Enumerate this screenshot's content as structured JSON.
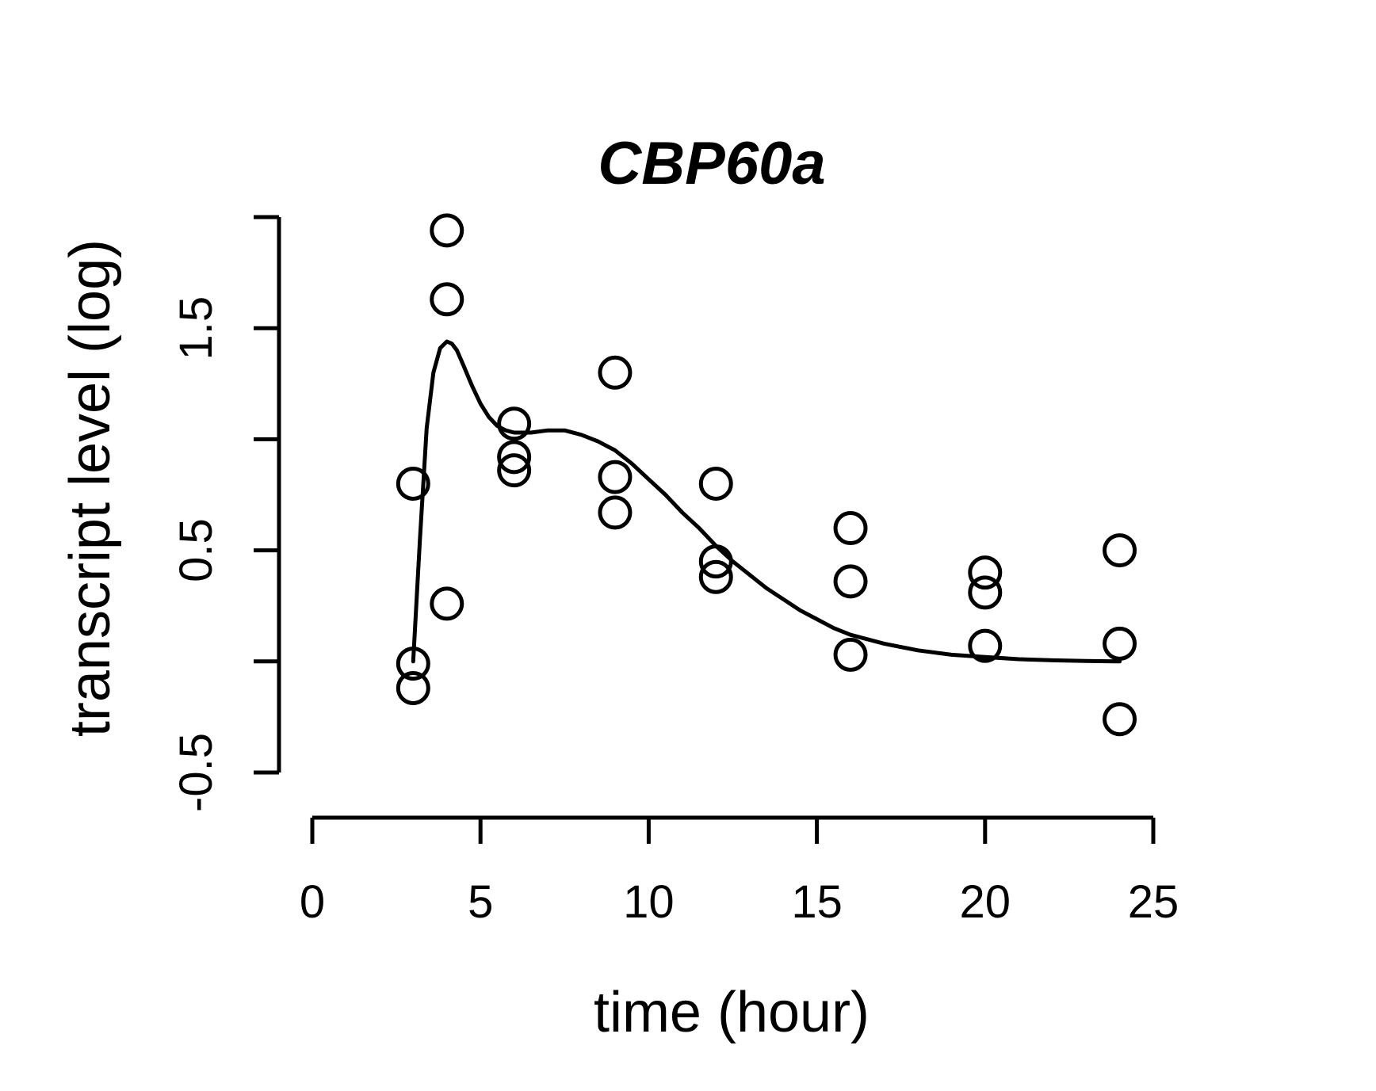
{
  "chart_data": {
    "type": "scatter",
    "title": "CBP60a",
    "xlabel": "time (hour)",
    "ylabel": "transcript level (log)",
    "xlim": [
      0,
      25
    ],
    "ylim": [
      -0.5,
      2.0
    ],
    "x_ticks": [
      0,
      5,
      10,
      15,
      20,
      25
    ],
    "x_tick_labels": [
      "0",
      "5",
      "10",
      "15",
      "20",
      "25"
    ],
    "y_ticks": [
      -0.5,
      0,
      0.5,
      1.0,
      1.5,
      2.0
    ],
    "y_tick_labels": [
      "-0.5",
      "",
      "0.5",
      "",
      "1.5",
      ""
    ],
    "grid": false,
    "legend": "none",
    "series": [
      {
        "kind": "points",
        "x": [
          3,
          3,
          3,
          4,
          4,
          4,
          6,
          6,
          6,
          9,
          9,
          9,
          12,
          12,
          12,
          16,
          16,
          16,
          20,
          20,
          20,
          24,
          24,
          24
        ],
        "y": [
          0.8,
          -0.01,
          -0.12,
          1.94,
          1.63,
          0.26,
          1.07,
          0.92,
          0.86,
          1.3,
          0.83,
          0.67,
          0.8,
          0.45,
          0.38,
          0.6,
          0.36,
          0.03,
          0.4,
          0.31,
          0.07,
          0.5,
          0.08,
          -0.26
        ]
      },
      {
        "kind": "fitted-curve",
        "x": [
          3.0,
          3.2,
          3.4,
          3.6,
          3.8,
          4.0,
          4.15,
          4.3,
          4.5,
          4.75,
          5.0,
          5.25,
          5.5,
          5.75,
          6.0,
          6.5,
          7.0,
          7.5,
          8.0,
          8.5,
          9.0,
          9.5,
          10.0,
          10.5,
          11.0,
          11.5,
          12.0,
          12.5,
          13.0,
          13.5,
          14.0,
          14.5,
          15.0,
          15.5,
          16.0,
          17.0,
          18.0,
          19.0,
          20.0,
          21.0,
          22.0,
          23.0,
          24.0
        ],
        "y": [
          0.0,
          0.55,
          1.05,
          1.3,
          1.41,
          1.44,
          1.43,
          1.4,
          1.33,
          1.24,
          1.16,
          1.1,
          1.06,
          1.04,
          1.03,
          1.03,
          1.04,
          1.04,
          1.02,
          0.99,
          0.95,
          0.89,
          0.82,
          0.75,
          0.67,
          0.6,
          0.52,
          0.45,
          0.39,
          0.33,
          0.28,
          0.23,
          0.19,
          0.15,
          0.12,
          0.08,
          0.05,
          0.03,
          0.02,
          0.01,
          0.005,
          0.002,
          0.0
        ]
      }
    ]
  }
}
